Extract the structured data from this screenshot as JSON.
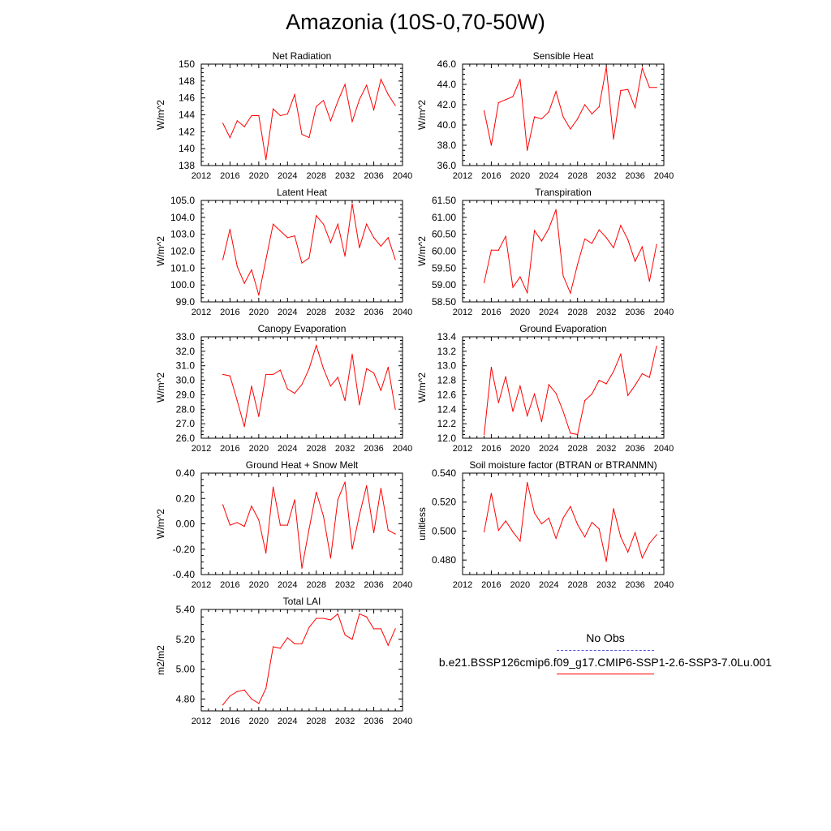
{
  "page": {
    "title": "Amazonia (10S-0,70-50W)"
  },
  "colors": {
    "model": "#ff0000",
    "obs": "#5a5ad8",
    "axis": "#000000",
    "background": "#ffffff"
  },
  "chart_data": [
    {
      "type": "line",
      "title": "Net Radiation",
      "ylabel": "W/m^2",
      "xlim": [
        2012,
        2040
      ],
      "ylim": [
        138,
        150
      ],
      "xticks": [
        2012,
        2016,
        2020,
        2024,
        2028,
        2032,
        2036,
        2040
      ],
      "xtick_labels": [
        "2012",
        "2016",
        "2020",
        "2024",
        "2028",
        "2032",
        "2036",
        "2040"
      ],
      "yticks": [
        138,
        140,
        142,
        144,
        146,
        148,
        150
      ],
      "ytick_labels": [
        "138",
        "140",
        "142",
        "144",
        "146",
        "148",
        "150"
      ],
      "x": [
        2015,
        2016,
        2017,
        2018,
        2019,
        2020,
        2021,
        2022,
        2023,
        2024,
        2025,
        2026,
        2027,
        2028,
        2029,
        2030,
        2031,
        2032,
        2033,
        2034,
        2035,
        2036,
        2037,
        2038,
        2039
      ],
      "series": [
        {
          "values": [
            143.0,
            141.3,
            143.3,
            142.6,
            143.9,
            143.9,
            138.7,
            144.7,
            143.9,
            144.1,
            146.4,
            141.7,
            141.3,
            145.0,
            145.7,
            143.3,
            145.6,
            147.6,
            143.2,
            145.8,
            147.5,
            144.6,
            148.2,
            146.4,
            145.1
          ]
        }
      ]
    },
    {
      "type": "line",
      "title": "Sensible Heat",
      "ylabel": "W/m^2",
      "xlim": [
        2012,
        2040
      ],
      "ylim": [
        36,
        46
      ],
      "xticks": [
        2012,
        2016,
        2020,
        2024,
        2028,
        2032,
        2036,
        2040
      ],
      "xtick_labels": [
        "2012",
        "2016",
        "2020",
        "2024",
        "2028",
        "2032",
        "2036",
        "2040"
      ],
      "yticks": [
        36,
        38,
        40,
        42,
        44,
        46
      ],
      "ytick_labels": [
        "36.0",
        "38.0",
        "40.0",
        "42.0",
        "44.0",
        "46.0"
      ],
      "x": [
        2015,
        2016,
        2017,
        2018,
        2019,
        2020,
        2021,
        2022,
        2023,
        2024,
        2025,
        2026,
        2027,
        2028,
        2029,
        2030,
        2031,
        2032,
        2033,
        2034,
        2035,
        2036,
        2037,
        2038,
        2039
      ],
      "series": [
        {
          "values": [
            41.4,
            38.0,
            42.2,
            42.5,
            42.8,
            44.5,
            37.5,
            40.8,
            40.6,
            41.3,
            43.3,
            40.8,
            39.6,
            40.6,
            42.0,
            41.1,
            41.8,
            45.7,
            38.6,
            43.4,
            43.5,
            41.7,
            45.6,
            43.7,
            43.7
          ]
        }
      ]
    },
    {
      "type": "line",
      "title": "Latent Heat",
      "ylabel": "W/m^2",
      "xlim": [
        2012,
        2040
      ],
      "ylim": [
        99,
        105
      ],
      "xticks": [
        2012,
        2016,
        2020,
        2024,
        2028,
        2032,
        2036,
        2040
      ],
      "xtick_labels": [
        "2012",
        "2016",
        "2020",
        "2024",
        "2028",
        "2032",
        "2036",
        "2040"
      ],
      "yticks": [
        99,
        100,
        101,
        102,
        103,
        104,
        105
      ],
      "ytick_labels": [
        "99.0",
        "100.0",
        "101.0",
        "102.0",
        "103.0",
        "104.0",
        "105.0"
      ],
      "x": [
        2015,
        2016,
        2017,
        2018,
        2019,
        2020,
        2021,
        2022,
        2023,
        2024,
        2025,
        2026,
        2027,
        2028,
        2029,
        2030,
        2031,
        2032,
        2033,
        2034,
        2035,
        2036,
        2037,
        2038,
        2039
      ],
      "series": [
        {
          "values": [
            101.5,
            103.3,
            101.1,
            100.1,
            100.9,
            99.4,
            101.5,
            103.6,
            103.2,
            102.8,
            102.9,
            101.3,
            101.6,
            104.1,
            103.6,
            102.5,
            103.6,
            101.7,
            104.8,
            102.2,
            103.6,
            102.8,
            102.3,
            102.8,
            101.5
          ]
        }
      ]
    },
    {
      "type": "line",
      "title": "Transpiration",
      "ylabel": "W/m^2",
      "xlim": [
        2012,
        2040
      ],
      "ylim": [
        58.5,
        61.5
      ],
      "xticks": [
        2012,
        2016,
        2020,
        2024,
        2028,
        2032,
        2036,
        2040
      ],
      "xtick_labels": [
        "2012",
        "2016",
        "2020",
        "2024",
        "2028",
        "2032",
        "2036",
        "2040"
      ],
      "yticks": [
        58.5,
        59.0,
        59.5,
        60.0,
        60.5,
        61.0,
        61.5
      ],
      "ytick_labels": [
        "58.50",
        "59.00",
        "59.50",
        "60.00",
        "60.50",
        "61.00",
        "61.50"
      ],
      "x": [
        2015,
        2016,
        2017,
        2018,
        2019,
        2020,
        2021,
        2022,
        2023,
        2024,
        2025,
        2026,
        2027,
        2028,
        2029,
        2030,
        2031,
        2032,
        2033,
        2034,
        2035,
        2036,
        2037,
        2038,
        2039
      ],
      "series": [
        {
          "values": [
            59.07,
            60.03,
            60.03,
            60.44,
            58.93,
            59.24,
            58.77,
            60.61,
            60.3,
            60.67,
            61.23,
            59.27,
            58.76,
            59.61,
            60.36,
            60.23,
            60.63,
            60.4,
            60.1,
            60.76,
            60.34,
            59.7,
            60.13,
            59.11,
            60.2
          ]
        }
      ]
    },
    {
      "type": "line",
      "title": "Canopy Evaporation",
      "ylabel": "W/m^2",
      "xlim": [
        2012,
        2040
      ],
      "ylim": [
        26,
        33
      ],
      "xticks": [
        2012,
        2016,
        2020,
        2024,
        2028,
        2032,
        2036,
        2040
      ],
      "xtick_labels": [
        "2012",
        "2016",
        "2020",
        "2024",
        "2028",
        "2032",
        "2036",
        "2040"
      ],
      "yticks": [
        26,
        27,
        28,
        29,
        30,
        31,
        32,
        33
      ],
      "ytick_labels": [
        "26.0",
        "27.0",
        "28.0",
        "29.0",
        "30.0",
        "31.0",
        "32.0",
        "33.0"
      ],
      "x": [
        2015,
        2016,
        2017,
        2018,
        2019,
        2020,
        2021,
        2022,
        2023,
        2024,
        2025,
        2026,
        2027,
        2028,
        2029,
        2030,
        2031,
        2032,
        2033,
        2034,
        2035,
        2036,
        2037,
        2038,
        2039
      ],
      "series": [
        {
          "values": [
            30.4,
            30.3,
            28.6,
            26.8,
            29.6,
            27.5,
            30.4,
            30.4,
            30.7,
            29.4,
            29.1,
            29.7,
            30.8,
            32.4,
            30.8,
            29.6,
            30.2,
            28.6,
            31.8,
            28.3,
            30.8,
            30.5,
            29.3,
            30.9,
            28.0
          ]
        }
      ]
    },
    {
      "type": "line",
      "title": "Ground Evaporation",
      "ylabel": "W/m^2",
      "xlim": [
        2012,
        2040
      ],
      "ylim": [
        12.0,
        13.4
      ],
      "xticks": [
        2012,
        2016,
        2020,
        2024,
        2028,
        2032,
        2036,
        2040
      ],
      "xtick_labels": [
        "2012",
        "2016",
        "2020",
        "2024",
        "2028",
        "2032",
        "2036",
        "2040"
      ],
      "yticks": [
        12.0,
        12.2,
        12.4,
        12.6,
        12.8,
        13.0,
        13.2,
        13.4
      ],
      "ytick_labels": [
        "12.0",
        "12.2",
        "12.4",
        "12.6",
        "12.8",
        "13.0",
        "13.2",
        "13.4"
      ],
      "x": [
        2015,
        2016,
        2017,
        2018,
        2019,
        2020,
        2021,
        2022,
        2023,
        2024,
        2025,
        2026,
        2027,
        2028,
        2029,
        2030,
        2031,
        2032,
        2033,
        2034,
        2035,
        2036,
        2037,
        2038,
        2039
      ],
      "series": [
        {
          "values": [
            12.05,
            12.98,
            12.49,
            12.85,
            12.37,
            12.72,
            12.31,
            12.61,
            12.23,
            12.74,
            12.62,
            12.37,
            12.07,
            12.05,
            12.52,
            12.61,
            12.8,
            12.75,
            12.92,
            13.16,
            12.59,
            12.73,
            12.89,
            12.84,
            13.27
          ]
        }
      ]
    },
    {
      "type": "line",
      "title": "Ground Heat + Snow Melt",
      "ylabel": "W/m^2",
      "xlim": [
        2012,
        2040
      ],
      "ylim": [
        -0.4,
        0.4
      ],
      "xticks": [
        2012,
        2016,
        2020,
        2024,
        2028,
        2032,
        2036,
        2040
      ],
      "xtick_labels": [
        "2012",
        "2016",
        "2020",
        "2024",
        "2028",
        "2032",
        "2036",
        "2040"
      ],
      "yticks": [
        -0.4,
        -0.2,
        0.0,
        0.2,
        0.4
      ],
      "ytick_labels": [
        "-0.40",
        "-0.20",
        "0.00",
        "0.20",
        "0.40"
      ],
      "x": [
        2015,
        2016,
        2017,
        2018,
        2019,
        2020,
        2021,
        2022,
        2023,
        2024,
        2025,
        2026,
        2027,
        2028,
        2029,
        2030,
        2031,
        2032,
        2033,
        2034,
        2035,
        2036,
        2037,
        2038,
        2039
      ],
      "series": [
        {
          "values": [
            0.15,
            -0.01,
            0.01,
            -0.02,
            0.14,
            0.03,
            -0.23,
            0.29,
            -0.01,
            -0.01,
            0.19,
            -0.35,
            -0.04,
            0.25,
            0.06,
            -0.27,
            0.19,
            0.33,
            -0.2,
            0.07,
            0.3,
            -0.07,
            0.28,
            -0.05,
            -0.08
          ]
        }
      ]
    },
    {
      "type": "line",
      "title": "Soil moisture factor (BTRAN or BTRANMN)",
      "ylabel": "unitless",
      "xlim": [
        2012,
        2040
      ],
      "ylim": [
        0.47,
        0.54
      ],
      "xticks": [
        2012,
        2016,
        2020,
        2024,
        2028,
        2032,
        2036,
        2040
      ],
      "xtick_labels": [
        "2012",
        "2016",
        "2020",
        "2024",
        "2028",
        "2032",
        "2036",
        "2040"
      ],
      "yticks": [
        0.48,
        0.5,
        0.52,
        0.54
      ],
      "ytick_labels": [
        "0.480",
        "0.500",
        "0.520",
        "0.540"
      ],
      "x": [
        2015,
        2016,
        2017,
        2018,
        2019,
        2020,
        2021,
        2022,
        2023,
        2024,
        2025,
        2026,
        2027,
        2028,
        2029,
        2030,
        2031,
        2032,
        2033,
        2034,
        2035,
        2036,
        2037,
        2038,
        2039
      ],
      "series": [
        {
          "values": [
            0.4995,
            0.526,
            0.5005,
            0.507,
            0.4995,
            0.493,
            0.5335,
            0.5125,
            0.505,
            0.509,
            0.495,
            0.509,
            0.517,
            0.5045,
            0.496,
            0.506,
            0.5015,
            0.479,
            0.5155,
            0.496,
            0.4855,
            0.499,
            0.4815,
            0.4915,
            0.4975
          ]
        }
      ]
    },
    {
      "type": "line",
      "title": "Total LAI",
      "ylabel": "m2/m2",
      "xlim": [
        2012,
        2040
      ],
      "ylim": [
        4.72,
        5.4
      ],
      "xticks": [
        2012,
        2016,
        2020,
        2024,
        2028,
        2032,
        2036,
        2040
      ],
      "xtick_labels": [
        "2012",
        "2016",
        "2020",
        "2024",
        "2028",
        "2032",
        "2036",
        "2040"
      ],
      "yticks": [
        4.8,
        5.0,
        5.2,
        5.4
      ],
      "ytick_labels": [
        "4.80",
        "5.00",
        "5.20",
        "5.40"
      ],
      "x": [
        2015,
        2016,
        2017,
        2018,
        2019,
        2020,
        2021,
        2022,
        2023,
        2024,
        2025,
        2026,
        2027,
        2028,
        2029,
        2030,
        2031,
        2032,
        2033,
        2034,
        2035,
        2036,
        2037,
        2038,
        2039
      ],
      "series": [
        {
          "values": [
            4.76,
            4.82,
            4.85,
            4.86,
            4.8,
            4.77,
            4.87,
            5.15,
            5.14,
            5.21,
            5.17,
            5.17,
            5.28,
            5.34,
            5.34,
            5.33,
            5.37,
            5.23,
            5.2,
            5.37,
            5.35,
            5.27,
            5.27,
            5.16,
            5.27
          ]
        }
      ]
    }
  ],
  "legend": {
    "items": [
      {
        "label": "No Obs",
        "style": "dashed",
        "color": "#5a5ad8"
      },
      {
        "label": "b.e21.BSSP126cmip6.f09_g17.CMIP6-SSP1-2.6-SSP3-7.0Lu.001",
        "style": "solid",
        "color": "#ff0000"
      }
    ]
  }
}
